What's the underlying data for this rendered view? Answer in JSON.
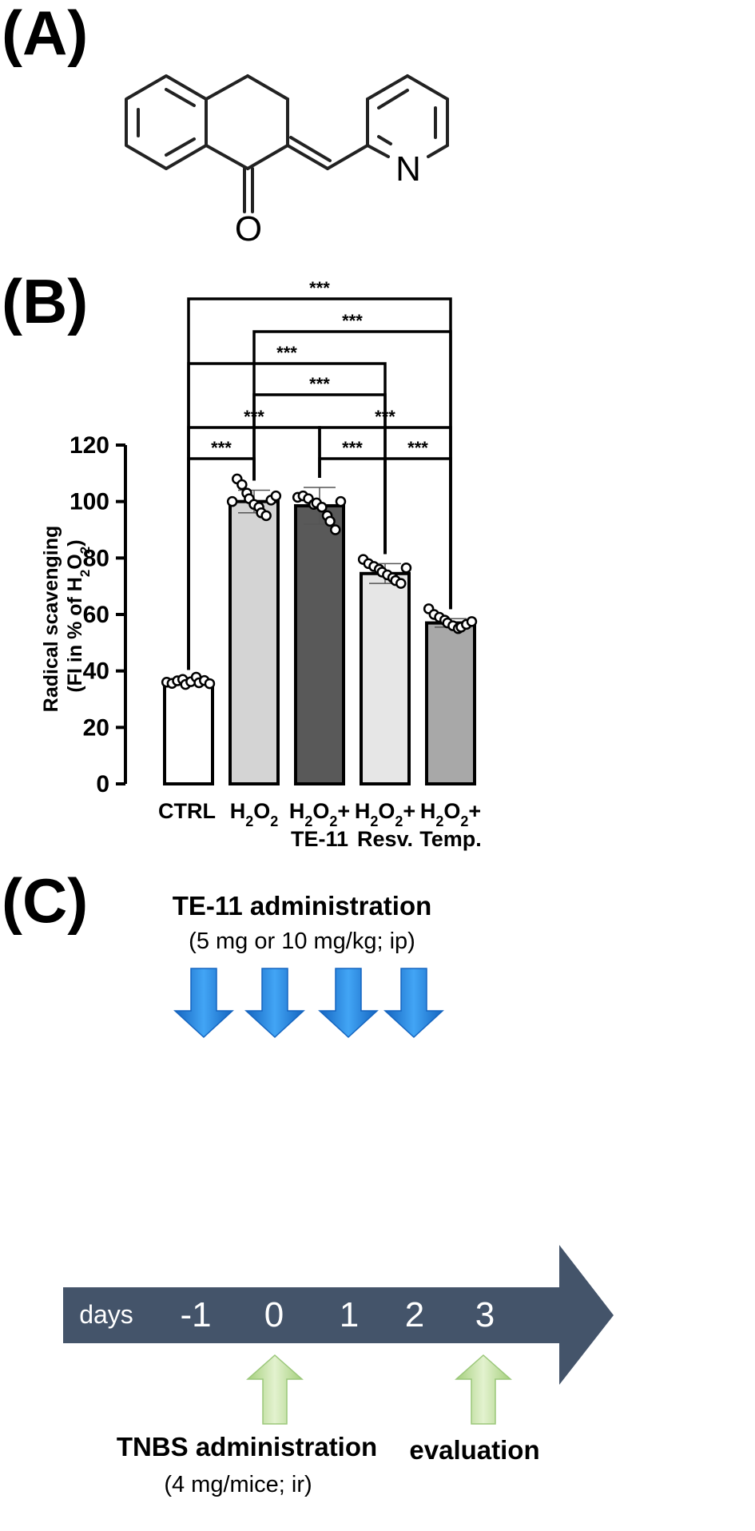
{
  "panels": {
    "a": "(A)",
    "b": "(B)",
    "c": "(C)"
  },
  "molecule": {
    "atom_o": "O",
    "atom_n": "N"
  },
  "chart_data": {
    "type": "bar",
    "categories": [
      {
        "line1": "CTRL",
        "line2": ""
      },
      {
        "line1": "H2O2",
        "line2": ""
      },
      {
        "line1": "H2O2+",
        "line2": "TE-11"
      },
      {
        "line1": "H2O2+",
        "line2": "Resv."
      },
      {
        "line1": "H2O2+",
        "line2": "Temp."
      }
    ],
    "values": [
      36,
      100,
      98.5,
      74.5,
      57
    ],
    "errors": [
      1,
      4,
      6.5,
      3.5,
      1.5
    ],
    "bar_colors": [
      "#ffffff",
      "#d4d4d4",
      "#595959",
      "#e6e6e6",
      "#a8a8a8"
    ],
    "points": [
      [
        36,
        35.6,
        36.5,
        37,
        35.2,
        36.2,
        37.8,
        35.8,
        36.6,
        35.5
      ],
      [
        100,
        108,
        106,
        103,
        101,
        99,
        98,
        96,
        95,
        100.5,
        102
      ],
      [
        101.5,
        102,
        101,
        99,
        99.5,
        98,
        95,
        93,
        90,
        100
      ],
      [
        79.5,
        78,
        77,
        76,
        75,
        74,
        73,
        72,
        71,
        76.5
      ],
      [
        62,
        60,
        59,
        58,
        57,
        56,
        55,
        55.5,
        56.5,
        57.5
      ]
    ],
    "ylabel_line1": "Radical scavenging",
    "ylabel_line2": "(FI in % of H2O2)",
    "ylim": [
      0,
      120
    ],
    "yticks": [
      "0",
      "20",
      "40",
      "60",
      "80",
      "100",
      "120"
    ],
    "significance": [
      {
        "from": 0,
        "to": 1,
        "label": "***"
      },
      {
        "from": 2,
        "to": 3,
        "label": "***"
      },
      {
        "from": 3,
        "to": 4,
        "label": "***"
      },
      {
        "from": 0,
        "to": 2,
        "label": "***"
      },
      {
        "from": 2,
        "to": 4,
        "label": "***"
      },
      {
        "from": 1,
        "to": 3,
        "label": "***"
      },
      {
        "from": 0,
        "to": 3,
        "label": "***"
      },
      {
        "from": 1,
        "to": 4,
        "label": "***"
      },
      {
        "from": 0,
        "to": 4,
        "label": "***"
      }
    ]
  },
  "timeline": {
    "top_title": "TE-11 administration",
    "top_subtitle": "(5 mg or 10 mg/kg; ip)",
    "days_label": "days",
    "days": [
      "-1",
      "0",
      "1",
      "2",
      "3"
    ],
    "bottom_left_title": "TNBS administration",
    "bottom_left_subtitle": "(4 mg/mice; ir)",
    "bottom_right_title": "evaluation",
    "colors": {
      "band": "#44546a",
      "blue_arrow": "#1e88e5",
      "green_arrow": "#c5e0a5"
    }
  }
}
